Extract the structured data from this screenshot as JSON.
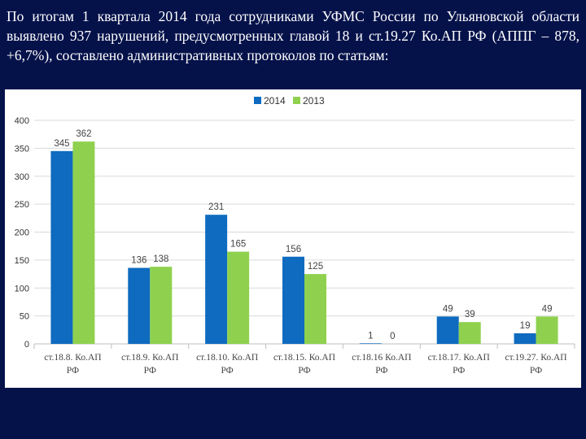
{
  "header": {
    "text": "По итогам 1 квартала 2014 года сотрудниками УФМС России по Ульяновской области выявлено 937 нарушений, предусмотренных главой 18 и ст.19.27 Ко.АП РФ (АППГ – 878, +6,7%), составлено административных протоколов по статьям:"
  },
  "chart_data": {
    "type": "bar",
    "categories": [
      [
        "ст.18.8. Ко.АП",
        "РФ"
      ],
      [
        "ст.18.9. Ко.АП",
        "РФ"
      ],
      [
        "ст.18.10. Ко.АП",
        "РФ"
      ],
      [
        "ст.18.15. Ко.АП",
        "РФ"
      ],
      [
        "ст.18.16 Ко.АП",
        "РФ"
      ],
      [
        "ст.18.17. Ко.АП",
        "РФ"
      ],
      [
        "ст.19.27. Ко.АП",
        "РФ"
      ]
    ],
    "series": [
      {
        "name": "2014",
        "color": "#0e6bbf",
        "values": [
          345,
          136,
          231,
          156,
          1,
          49,
          19
        ]
      },
      {
        "name": "2013",
        "color": "#8fd14f",
        "values": [
          362,
          138,
          165,
          125,
          0,
          39,
          49
        ]
      }
    ],
    "ylim": [
      0,
      400
    ],
    "yticks": [
      0,
      50,
      100,
      150,
      200,
      250,
      300,
      350,
      400
    ],
    "grid": true,
    "legend": "top-center"
  }
}
